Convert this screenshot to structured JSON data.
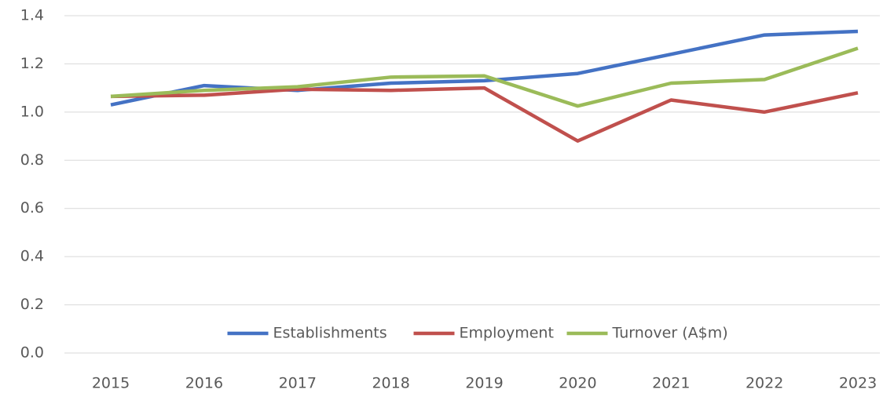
{
  "chart_data": {
    "type": "line",
    "categories": [
      "2015",
      "2016",
      "2017",
      "2018",
      "2019",
      "2020",
      "2021",
      "2022",
      "2023"
    ],
    "series": [
      {
        "name": "Establishments",
        "color": "#4472c4",
        "values": [
          1.03,
          1.11,
          1.09,
          1.12,
          1.13,
          1.16,
          1.24,
          1.32,
          1.335
        ]
      },
      {
        "name": "Employment",
        "color": "#c0504d",
        "values": [
          1.065,
          1.07,
          1.095,
          1.09,
          1.1,
          0.88,
          1.05,
          1.0,
          1.08
        ]
      },
      {
        "name": "Turnover (A$m)",
        "color": "#9bbb59",
        "values": [
          1.065,
          1.09,
          1.105,
          1.145,
          1.15,
          1.025,
          1.12,
          1.135,
          1.265
        ]
      }
    ],
    "ylim": [
      0,
      1.4
    ],
    "yticks": [
      {
        "value": 0,
        "label": "0.0"
      },
      0.2,
      0.4,
      0.6,
      0.8,
      {
        "value": 1,
        "label": "1.0"
      },
      1.2,
      1.4
    ],
    "grid": true,
    "legend": "bottom"
  }
}
